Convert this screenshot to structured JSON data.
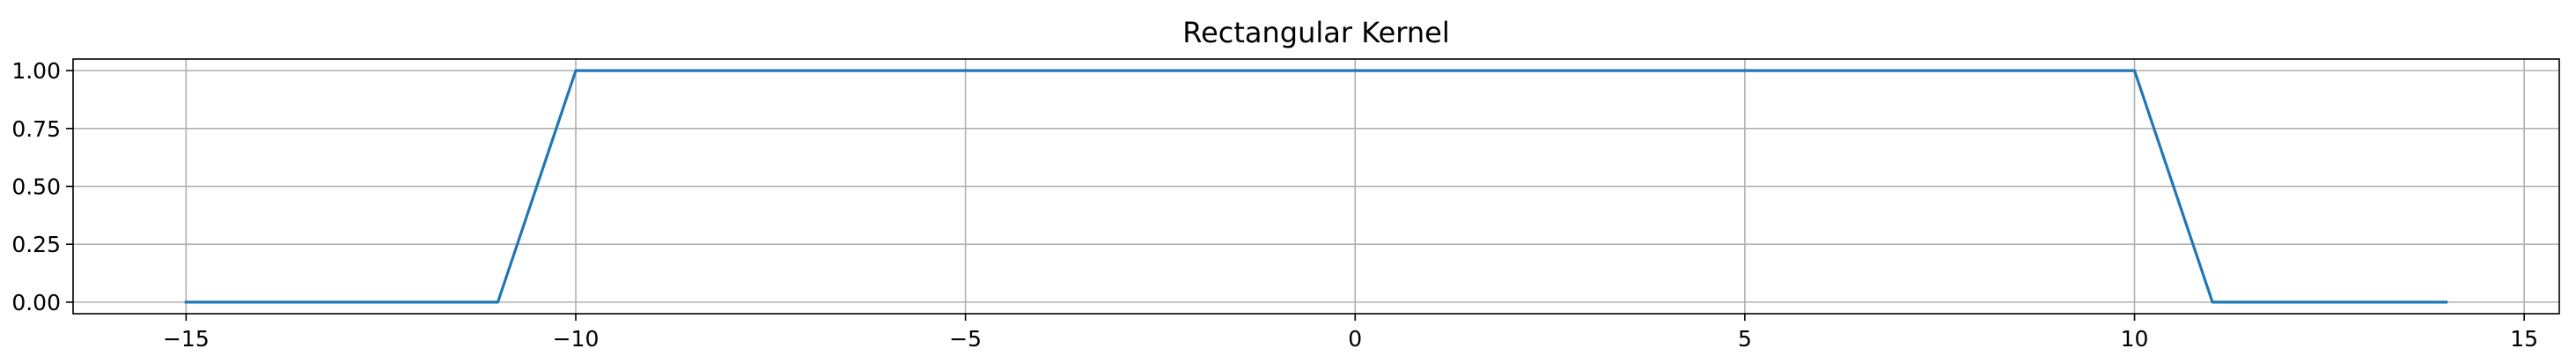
{
  "chart_data": {
    "type": "line",
    "title": "Rectangular Kernel",
    "xlabel": "",
    "ylabel": "",
    "xlim": [
      -16.45,
      15.45
    ],
    "ylim": [
      -0.05,
      1.05
    ],
    "xticks": [
      -15,
      -10,
      -5,
      0,
      5,
      10,
      15
    ],
    "xtick_labels": [
      "−15",
      "−10",
      "−5",
      "0",
      "5",
      "10",
      "15"
    ],
    "yticks": [
      0.0,
      0.25,
      0.5,
      0.75,
      1.0
    ],
    "ytick_labels": [
      "0.00",
      "0.25",
      "0.50",
      "0.75",
      "1.00"
    ],
    "grid": true,
    "legend": "none",
    "series": [
      {
        "color": "#1f77b4",
        "x": [
          -15,
          -14,
          -13,
          -12,
          -11,
          -10,
          -9,
          -8,
          -7,
          -6,
          -5,
          -4,
          -3,
          -2,
          -1,
          0,
          1,
          2,
          3,
          4,
          5,
          6,
          7,
          8,
          9,
          10,
          11,
          12,
          13,
          14
        ],
        "y": [
          0,
          0,
          0,
          0,
          0,
          1,
          1,
          1,
          1,
          1,
          1,
          1,
          1,
          1,
          1,
          1,
          1,
          1,
          1,
          1,
          1,
          1,
          1,
          1,
          1,
          1,
          0,
          0,
          0,
          0
        ]
      }
    ]
  }
}
